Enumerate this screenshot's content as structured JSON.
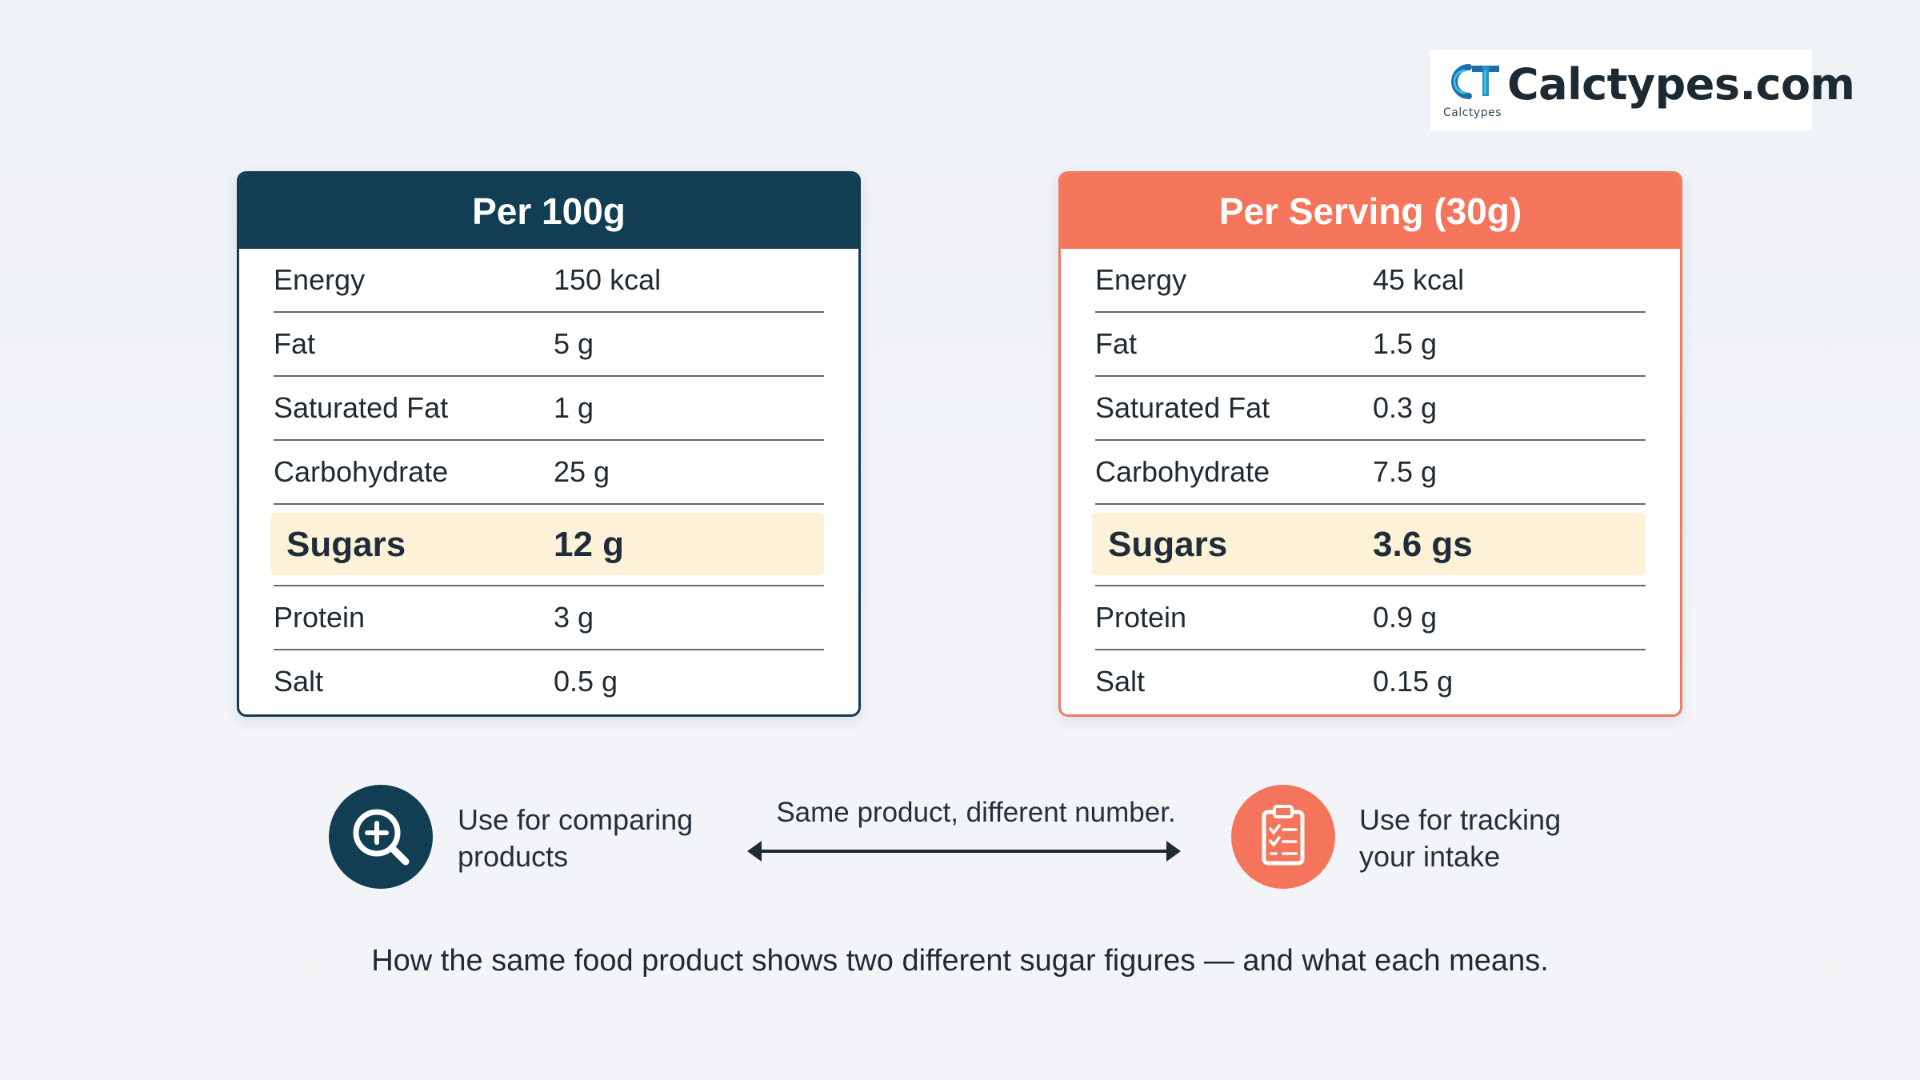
{
  "logo": {
    "mark": "CT",
    "subtitle": "Calctypes",
    "name": "Calctypes.com",
    "colors": {
      "teal": "#1f7fc0",
      "cyan": "#39c2e0"
    }
  },
  "per_100g": {
    "title": "Per 100g",
    "rows": [
      {
        "label": "Energy",
        "value": "150 kcal"
      },
      {
        "label": "Fat",
        "value": "5 g"
      },
      {
        "label": "Saturated Fat",
        "value": "1 g"
      },
      {
        "label": "Carbohydrate",
        "value": "25 g"
      },
      {
        "label": "Sugars",
        "value": "12 g",
        "highlight": true
      },
      {
        "label": "Protein",
        "value": "3 g"
      },
      {
        "label": "Salt",
        "value": "0.5 g"
      }
    ],
    "color": "#123e54"
  },
  "per_serving": {
    "title": "Per Serving (30g)",
    "rows": [
      {
        "label": "Energy",
        "value": "45 kcal"
      },
      {
        "label": "Fat",
        "value": "1.5 g"
      },
      {
        "label": "Saturated Fat",
        "value": "0.3 g"
      },
      {
        "label": "Carbohydrate",
        "value": "7.5 g"
      },
      {
        "label": "Sugars",
        "value": "3.6 gs",
        "highlight": true
      },
      {
        "label": "Protein",
        "value": "0.9 g"
      },
      {
        "label": "Salt",
        "value": "0.15 g"
      }
    ],
    "color": "#f5755c"
  },
  "bottom": {
    "left_icon": "magnifier-plus-icon",
    "left_text_line1": "Use for comparing",
    "left_text_line2": "products",
    "center_text": "Same product, different number.",
    "right_icon": "clipboard-checklist-icon",
    "right_text_line1": "Use for tracking",
    "right_text_line2": "your intake"
  },
  "caption": "How the same food product shows two different sugar figures — and what each means."
}
